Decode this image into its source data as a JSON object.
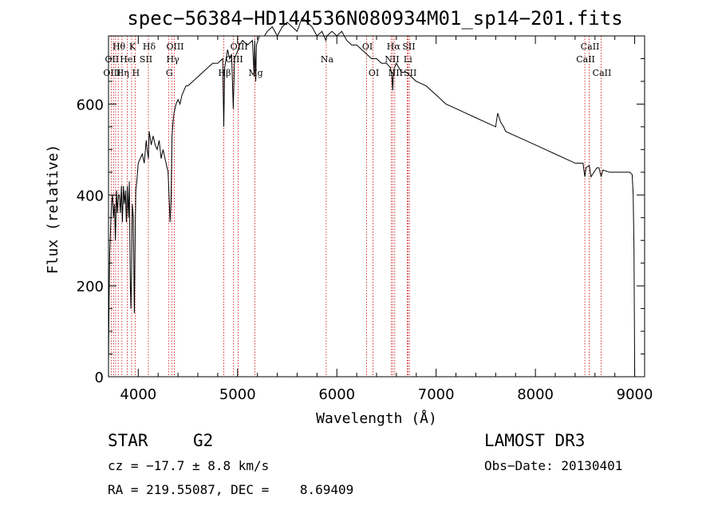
{
  "chart_data": {
    "type": "line",
    "title": "spec−56384−HD144536N080934M01_sp14−201.fits",
    "xlabel": "Wavelength (Å)",
    "ylabel": "Flux (relative)",
    "xlim": [
      3700,
      9100
    ],
    "ylim": [
      0,
      750
    ],
    "xticks": [
      4000,
      5000,
      6000,
      7000,
      8000,
      9000
    ],
    "yticks": [
      0,
      200,
      400,
      600
    ],
    "series": [
      {
        "name": "spectrum",
        "x": [
          3700,
          3705,
          3712,
          3720,
          3730,
          3740,
          3750,
          3760,
          3770,
          3780,
          3790,
          3800,
          3810,
          3820,
          3830,
          3840,
          3850,
          3860,
          3870,
          3880,
          3890,
          3900,
          3910,
          3920,
          3926,
          3933,
          3940,
          3950,
          3960,
          3968,
          3975,
          3985,
          4000,
          4020,
          4040,
          4060,
          4080,
          4090,
          4102,
          4110,
          4130,
          4150,
          4170,
          4190,
          4210,
          4230,
          4250,
          4270,
          4290,
          4300,
          4310,
          4320,
          4330,
          4340,
          4350,
          4360,
          4380,
          4400,
          4420,
          4440,
          4460,
          4480,
          4500,
          4550,
          4600,
          4650,
          4700,
          4750,
          4800,
          4850,
          4861,
          4870,
          4900,
          4920,
          4940,
          4957,
          4970,
          5007,
          5020,
          5050,
          5100,
          5150,
          5167,
          5172,
          5183,
          5190,
          5220,
          5270,
          5300,
          5350,
          5400,
          5450,
          5500,
          5550,
          5600,
          5650,
          5700,
          5750,
          5800,
          5850,
          5890,
          5900,
          5950,
          6000,
          6050,
          6100,
          6150,
          6200,
          6250,
          6300,
          6350,
          6400,
          6450,
          6500,
          6540,
          6555,
          6563,
          6570,
          6580,
          6600,
          6650,
          6700,
          6750,
          6800,
          6900,
          7000,
          7100,
          7200,
          7300,
          7400,
          7500,
          7600,
          7620,
          7650,
          7680,
          7700,
          7800,
          7900,
          8000,
          8100,
          8200,
          8300,
          8400,
          8480,
          8498,
          8510,
          8542,
          8560,
          8620,
          8640,
          8662,
          8680,
          8750,
          8850,
          8950,
          8975,
          8985,
          8993,
          9000
        ],
        "y": [
          30,
          150,
          270,
          320,
          380,
          400,
          350,
          380,
          300,
          410,
          360,
          400,
          400,
          360,
          420,
          340,
          420,
          380,
          410,
          340,
          420,
          350,
          430,
          200,
          150,
          240,
          380,
          350,
          140,
          300,
          410,
          430,
          470,
          480,
          490,
          470,
          520,
          500,
          480,
          540,
          510,
          530,
          510,
          500,
          520,
          480,
          500,
          480,
          460,
          450,
          400,
          340,
          390,
          530,
          560,
          580,
          600,
          610,
          600,
          620,
          630,
          640,
          640,
          650,
          660,
          670,
          680,
          690,
          690,
          700,
          550,
          680,
          720,
          700,
          710,
          590,
          700,
          720,
          730,
          740,
          730,
          740,
          660,
          740,
          650,
          730,
          750,
          750,
          760,
          770,
          750,
          770,
          780,
          770,
          760,
          790,
          780,
          770,
          750,
          760,
          740,
          750,
          760,
          750,
          760,
          740,
          730,
          730,
          720,
          710,
          700,
          700,
          690,
          690,
          680,
          660,
          630,
          670,
          680,
          690,
          670,
          670,
          660,
          650,
          640,
          620,
          600,
          590,
          580,
          570,
          560,
          550,
          580,
          560,
          550,
          540,
          530,
          520,
          510,
          500,
          490,
          480,
          470,
          470,
          440,
          460,
          465,
          440,
          460,
          460,
          440,
          455,
          450,
          450,
          450,
          445,
          400,
          280,
          0
        ]
      }
    ],
    "line_markers": [
      {
        "label": "Hθ",
        "wave": 3797,
        "row": 1
      },
      {
        "label": "OII",
        "wave": 3727,
        "row": 2
      },
      {
        "label": "OIII",
        "wave": 3727,
        "row": 3
      },
      {
        "label": "K",
        "wave": 3933,
        "row": 1
      },
      {
        "label": "HeI",
        "wave": 3889,
        "row": 2
      },
      {
        "label": "Hη",
        "wave": 3835,
        "row": 3
      },
      {
        "label": "Hδ",
        "wave": 4102,
        "row": 1
      },
      {
        "label": "SII",
        "wave": 4070,
        "row": 2
      },
      {
        "label": "H",
        "wave": 3968,
        "row": 3
      },
      {
        "label": "OIII",
        "wave": 4363,
        "row": 1
      },
      {
        "label": "Hγ",
        "wave": 4340,
        "row": 2
      },
      {
        "label": "G",
        "wave": 4305,
        "row": 3
      },
      {
        "label": "OIII",
        "wave": 5007,
        "row": 1
      },
      {
        "label": "OIII",
        "wave": 4959,
        "row": 2
      },
      {
        "label": "Hβ",
        "wave": 4861,
        "row": 3
      },
      {
        "label": "Mg",
        "wave": 5175,
        "row": 3
      },
      {
        "label": "Na",
        "wave": 5893,
        "row": 2
      },
      {
        "label": "OI",
        "wave": 6300,
        "row": 1
      },
      {
        "label": "OI",
        "wave": 6364,
        "row": 3
      },
      {
        "label": "Hα",
        "wave": 6563,
        "row": 1
      },
      {
        "label": "SII",
        "wave": 6717,
        "row": 1
      },
      {
        "label": "NII",
        "wave": 6548,
        "row": 2
      },
      {
        "label": "Li",
        "wave": 6708,
        "row": 2
      },
      {
        "label": "NII",
        "wave": 6583,
        "row": 3
      },
      {
        "label": "SII",
        "wave": 6731,
        "row": 3
      },
      {
        "label": "CaII",
        "wave": 8542,
        "row": 1
      },
      {
        "label": "CaII",
        "wave": 8498,
        "row": 2
      },
      {
        "label": "CaII",
        "wave": 8662,
        "row": 3
      }
    ],
    "marker_waves": [
      3727,
      3750,
      3771,
      3798,
      3835,
      3889,
      3933,
      3968,
      4102,
      4305,
      4340,
      4363,
      4861,
      4959,
      5007,
      5175,
      5893,
      6300,
      6364,
      6548,
      6563,
      6583,
      6708,
      6717,
      6731,
      8498,
      8542,
      8662
    ]
  },
  "info": {
    "object_type": "STAR",
    "spectral_class": "G2",
    "survey": "LAMOST DR3",
    "cz": "cz = −17.7 ± 8.8 km/s",
    "obs_date": "Obs−Date: 20130401",
    "coords": "RA = 219.55087, DEC =    8.69409"
  },
  "colors": {
    "marker": "#cc0000",
    "ink": "#000000",
    "background": "#ffffff"
  }
}
